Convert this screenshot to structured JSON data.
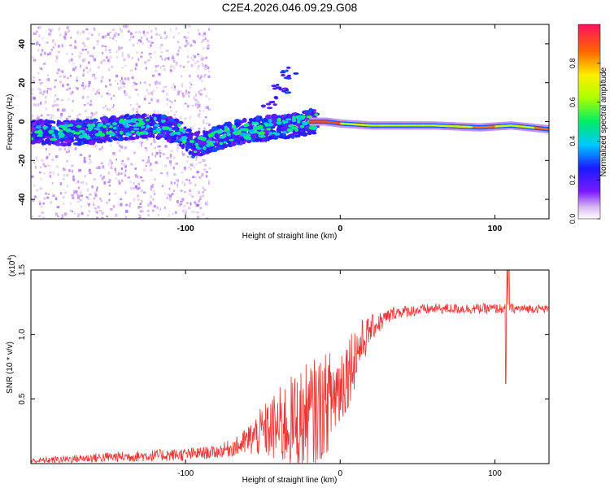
{
  "title": "C2E4.2026.046.09.29.G08",
  "spectrogram": {
    "type": "heatmap",
    "xlabel": "Height of straight line (km)",
    "ylabel": "Frequency (Hz)",
    "xlim": [
      -200,
      135
    ],
    "ylim": [
      -50,
      50
    ],
    "xticks": [
      -100,
      0,
      100
    ],
    "xtick_labels": [
      "-100",
      "0",
      "100"
    ],
    "yticks": [
      -40,
      -20,
      0,
      20,
      40
    ],
    "ytick_labels": [
      "-40",
      "-20",
      "0",
      "20",
      "40"
    ],
    "ridge": [
      {
        "x": -200,
        "f": -5
      },
      {
        "x": -180,
        "f": -6
      },
      {
        "x": -160,
        "f": -5
      },
      {
        "x": -140,
        "f": -3
      },
      {
        "x": -120,
        "f": -2
      },
      {
        "x": -105,
        "f": -5
      },
      {
        "x": -95,
        "f": -12
      },
      {
        "x": -85,
        "f": -10
      },
      {
        "x": -70,
        "f": -6
      },
      {
        "x": -55,
        "f": -4
      },
      {
        "x": -40,
        "f": -3
      },
      {
        "x": -30,
        "f": -2
      },
      {
        "x": -20,
        "f": 0
      },
      {
        "x": -10,
        "f": 0
      },
      {
        "x": 0,
        "f": -1
      },
      {
        "x": 20,
        "f": -2
      },
      {
        "x": 60,
        "f": -2
      },
      {
        "x": 90,
        "f": -3
      },
      {
        "x": 110,
        "f": -2
      },
      {
        "x": 135,
        "f": -4
      }
    ],
    "branch": [
      {
        "x": -45,
        "f": 10
      },
      {
        "x": -38,
        "f": 17
      },
      {
        "x": -33,
        "f": 25
      }
    ]
  },
  "colorbar": {
    "label": "Normalized spectral amplitude",
    "range": [
      0,
      1
    ],
    "ticks": [
      0.0,
      0.2,
      0.4,
      0.6,
      0.8
    ],
    "tick_labels": [
      "0.0",
      "0.2",
      "0.4",
      "0.6",
      "0.8"
    ]
  },
  "snr": {
    "type": "line",
    "color": "#ee3333",
    "xlabel": "Height of straight line (km)",
    "ylabel": "SNR (10 * v/v)",
    "scale_label": "(x10",
    "scale_exponent": "4",
    "scale_close": ")",
    "xlim": [
      -200,
      135
    ],
    "ylim": [
      0,
      1.5
    ],
    "xticks": [
      -100,
      0,
      100
    ],
    "xtick_labels": [
      "-100",
      "0",
      "100"
    ],
    "yticks": [
      0.5,
      1.0,
      1.5
    ],
    "ytick_labels": [
      "0.5",
      "1.0",
      "1.5"
    ],
    "trend": [
      {
        "x": -200,
        "y": 0.02,
        "noise": 0.02
      },
      {
        "x": -150,
        "y": 0.05,
        "noise": 0.04
      },
      {
        "x": -100,
        "y": 0.07,
        "noise": 0.05
      },
      {
        "x": -80,
        "y": 0.09,
        "noise": 0.05
      },
      {
        "x": -65,
        "y": 0.14,
        "noise": 0.08
      },
      {
        "x": -50,
        "y": 0.25,
        "noise": 0.2
      },
      {
        "x": -35,
        "y": 0.3,
        "noise": 0.35
      },
      {
        "x": -20,
        "y": 0.35,
        "noise": 0.45
      },
      {
        "x": -10,
        "y": 0.45,
        "noise": 0.4
      },
      {
        "x": 0,
        "y": 0.6,
        "noise": 0.35
      },
      {
        "x": 10,
        "y": 0.85,
        "noise": 0.25
      },
      {
        "x": 20,
        "y": 1.05,
        "noise": 0.1
      },
      {
        "x": 35,
        "y": 1.17,
        "noise": 0.05
      },
      {
        "x": 60,
        "y": 1.2,
        "noise": 0.04
      },
      {
        "x": 100,
        "y": 1.2,
        "noise": 0.04
      },
      {
        "x": 135,
        "y": 1.2,
        "noise": 0.03
      }
    ],
    "spikes": [
      {
        "x": 107,
        "y": 0.62
      },
      {
        "x": 108,
        "y": 1.5
      },
      {
        "x": 109,
        "y": 1.5
      }
    ]
  }
}
